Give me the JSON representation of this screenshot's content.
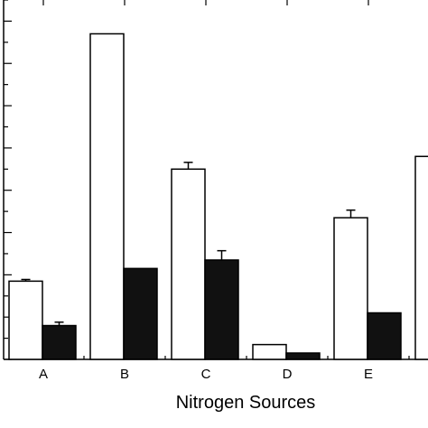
{
  "chart_data": {
    "type": "bar",
    "xlabel": "Nitrogen Sources",
    "categories": [
      "A",
      "B",
      "C",
      "D",
      "E",
      ""
    ],
    "series": [
      {
        "fill": "#ffffff",
        "values": [
          18.5,
          77,
          45,
          3.5,
          33.5,
          48
        ],
        "errors": [
          0.4,
          0,
          1.6,
          0,
          1.8,
          0
        ]
      },
      {
        "fill": "#111111",
        "values": [
          8,
          21.5,
          23.5,
          1.5,
          11,
          null
        ],
        "errors": [
          0.8,
          0,
          2.2,
          0,
          0,
          0
        ]
      }
    ],
    "ylim": [
      0,
      85
    ],
    "major_tick_step": 10,
    "minor_tick_step": 5
  }
}
